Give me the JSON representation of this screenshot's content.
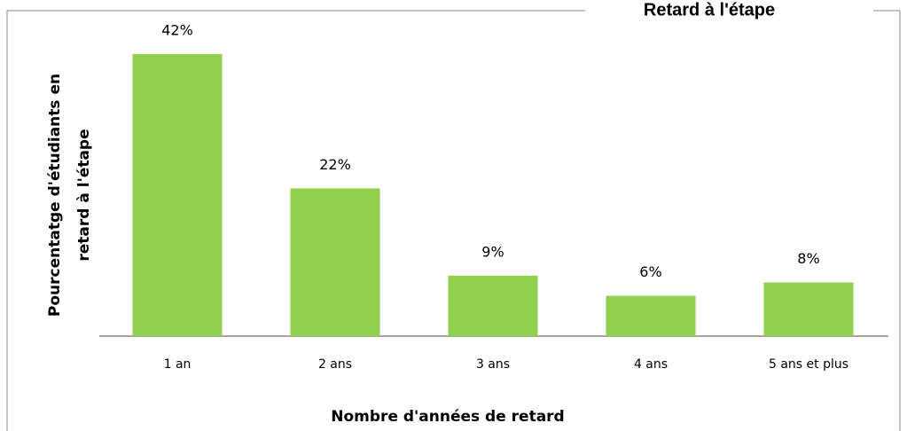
{
  "chart_data": {
    "type": "bar",
    "title": "Retard à l'étape",
    "y_label": "Pourcentatge d'étudiants en retard à l'étape",
    "x_label": "Nombre d'années de retard",
    "categories": [
      "1 an",
      "2 ans",
      "3 ans",
      "4 ans",
      "5 ans et plus"
    ],
    "values": [
      42,
      22,
      9,
      6,
      8
    ],
    "value_labels": [
      "42%",
      "22%",
      "9%",
      "6%",
      "8%"
    ],
    "color": "#92d050"
  }
}
